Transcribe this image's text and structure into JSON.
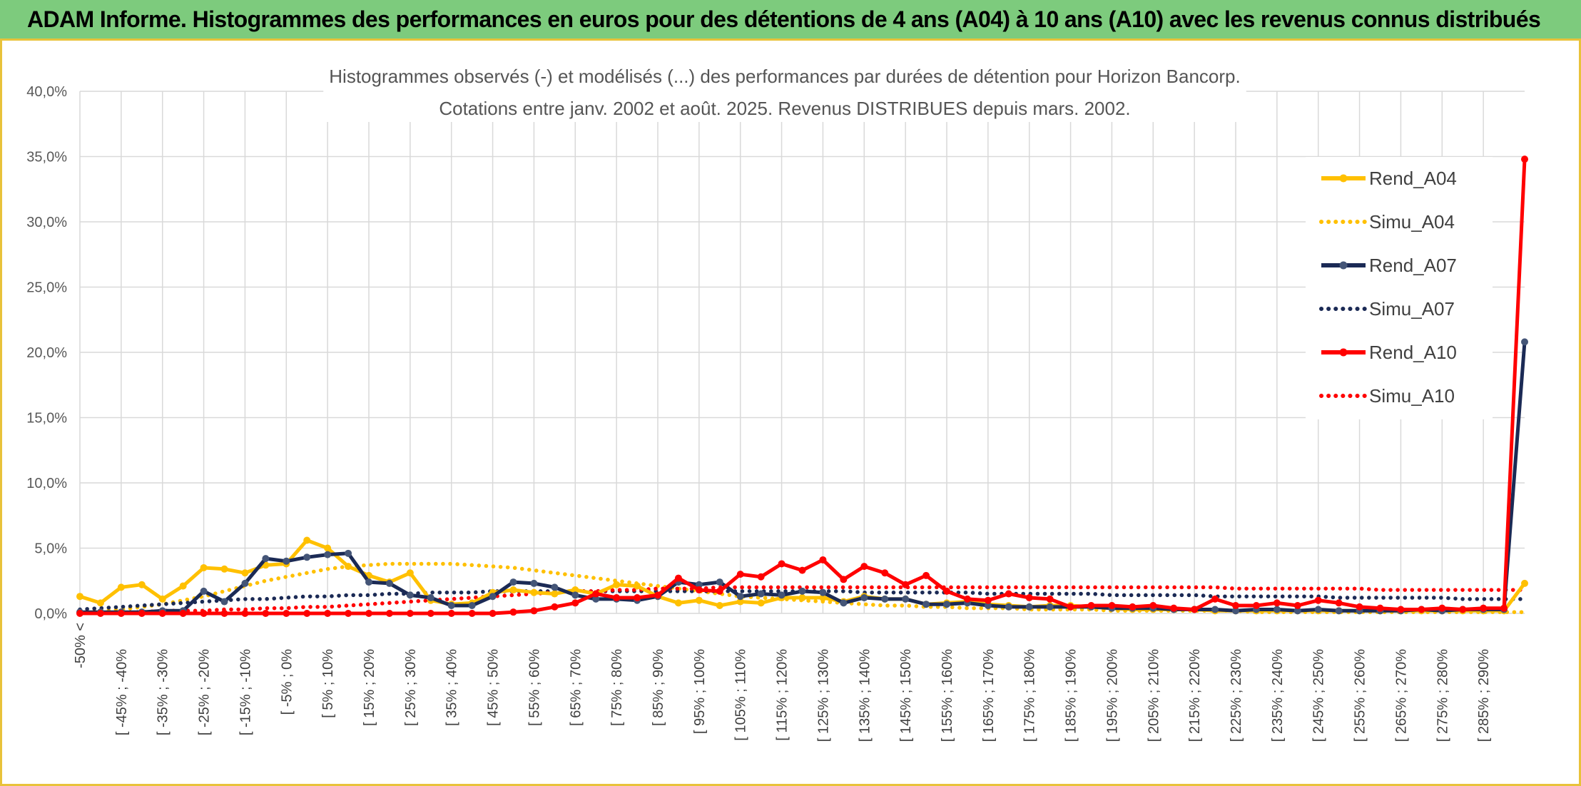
{
  "header": {
    "title": "ADAM Informe. Histogrammes des performances en euros pour des détentions de 4 ans (A04) à 10 ans (A10) avec les revenus connus distribués"
  },
  "colors": {
    "header_bg": "#7dcb7d",
    "frame": "#e8c23a",
    "a04": "#ffc000",
    "a07": "#1b2a55",
    "a10": "#ff0000",
    "grid": "#d9d9d9"
  },
  "chart_data": {
    "type": "line",
    "title": [
      "Histogrammes observés (-) et modélisés (...) des performances par durées de détention pour Horizon Bancorp.",
      "Cotations entre janv. 2002 et août. 2025. Revenus DISTRIBUES depuis mars. 2002."
    ],
    "xlabel": "",
    "ylabel": "",
    "ylim": [
      0,
      40
    ],
    "yticks": [
      "0,0%",
      "5,0%",
      "10,0%",
      "15,0%",
      "20,0%",
      "25,0%",
      "30,0%",
      "35,0%",
      "40,0%"
    ],
    "grid": true,
    "legend_position": "right",
    "categories": [
      "-50% <",
      "[ -50% ; -45%",
      "[ -45% ; -40%",
      "[ -40% ; -35%",
      "[ -35% ; -30%",
      "[ -30% ; -25%",
      "[ -25% ; -20%",
      "[ -20% ; -15%",
      "[ -15% ; -10%",
      "[ -10% ; -5%",
      "[ -5% ; 0%",
      "[ 0% ; 5%",
      "[ 5% ; 10%",
      "[ 10% ; 15%",
      "[ 15% ; 20%",
      "[ 20% ; 25%",
      "[ 25% ; 30%",
      "[ 30% ; 35%",
      "[ 35% ; 40%",
      "[ 40% ; 45%",
      "[ 45% ; 50%",
      "[ 50% ; 55%",
      "[ 55% ; 60%",
      "[ 60% ; 65%",
      "[ 65% ; 70%",
      "[ 70% ; 75%",
      "[ 75% ; 80%",
      "[ 80% ; 85%",
      "[ 85% ; 90%",
      "[ 90% ; 95%",
      "[ 95% ; 100%",
      "[ 100% ; 105%",
      "[ 105% ; 110%",
      "[ 110% ; 115%",
      "[ 115% ; 120%",
      "[ 120% ; 125%",
      "[ 125% ; 130%",
      "[ 130% ; 135%",
      "[ 135% ; 140%",
      "[ 140% ; 145%",
      "[ 145% ; 150%",
      "[ 150% ; 155%",
      "[ 155% ; 160%",
      "[ 160% ; 165%",
      "[ 165% ; 170%",
      "[ 170% ; 175%",
      "[ 175% ; 180%",
      "[ 180% ; 185%",
      "[ 185% ; 190%",
      "[ 190% ; 195%",
      "[ 195% ; 200%",
      "[ 200% ; 205%",
      "[ 205% ; 210%",
      "[ 210% ; 215%",
      "[ 215% ; 220%",
      "[ 220% ; 225%",
      "[ 225% ; 230%",
      "[ 230% ; 235%",
      "[ 235% ; 240%",
      "[ 240% ; 245%",
      "[ 245% ; 250%",
      "[ 250% ; 255%",
      "[ 255% ; 260%",
      "[ 260% ; 265%",
      "[ 265% ; 270%",
      "[ 270% ; 275%",
      "[ 275% ; 280%",
      "[ 280% ; 285%",
      "[ 285% ; 290%",
      "[ 290% ; 295%",
      "> 295%"
    ],
    "visible_tick_labels": [
      "-50% <",
      "[ -45% ; -40%",
      "[ -35% ; -30%",
      "[ -25% ; -20%",
      "[ -15% ; -10%",
      "[ -5% ; 0%",
      "[ 5% ; 10%",
      "[ 15% ; 20%",
      "[ 25% ; 30%",
      "[ 35% ; 40%",
      "[ 45% ; 50%",
      "[ 55% ; 60%",
      "[ 65% ; 70%",
      "[ 75% ; 80%",
      "[ 85% ; 90%",
      "[ 95% ; 100%",
      "[ 105% ; 110%",
      "[ 115% ; 120%",
      "[ 125% ; 130%",
      "[ 135% ; 140%",
      "[ 145% ; 150%",
      "[ 155% ; 160%",
      "[ 165% ; 170%",
      "[ 175% ; 180%",
      "[ 185% ; 190%",
      "[ 195% ; 200%",
      "[ 205% ; 210%",
      "[ 215% ; 220%",
      "[ 225% ; 230%",
      "[ 235% ; 240%",
      "[ 245% ; 250%",
      "[ 255% ; 260%",
      "[ 265% ; 270%",
      "[ 275% ; 280%",
      "[ 285% ; 290%"
    ],
    "series": [
      {
        "name": "Rend_A04",
        "style": "solid",
        "marker": true,
        "color": "#ffc000",
        "values": [
          1.3,
          0.8,
          2.0,
          2.2,
          1.1,
          2.1,
          3.5,
          3.4,
          3.1,
          3.7,
          3.8,
          5.6,
          5.0,
          3.6,
          2.9,
          2.4,
          3.1,
          1.0,
          0.7,
          0.8,
          1.6,
          1.8,
          1.6,
          1.5,
          1.8,
          1.5,
          2.2,
          2.1,
          1.3,
          0.8,
          1.0,
          0.6,
          0.9,
          0.8,
          1.2,
          1.2,
          1.2,
          0.9,
          1.3,
          1.1,
          1.1,
          0.7,
          0.8,
          0.9,
          0.7,
          0.6,
          0.5,
          0.6,
          0.6,
          0.5,
          0.4,
          0.3,
          0.3,
          0.3,
          0.3,
          0.2,
          0.2,
          0.2,
          0.2,
          0.2,
          0.2,
          0.2,
          0.2,
          0.2,
          0.2,
          0.2,
          0.2,
          0.2,
          0.2,
          0.2,
          2.3
        ]
      },
      {
        "name": "Simu_A04",
        "style": "dotted",
        "marker": false,
        "color": "#ffc000",
        "values": [
          0.1,
          0.2,
          0.3,
          0.5,
          0.7,
          1.0,
          1.3,
          1.7,
          2.1,
          2.5,
          2.8,
          3.1,
          3.4,
          3.6,
          3.7,
          3.8,
          3.8,
          3.8,
          3.8,
          3.7,
          3.6,
          3.5,
          3.3,
          3.1,
          2.9,
          2.7,
          2.5,
          2.3,
          2.1,
          1.9,
          1.7,
          1.5,
          1.3,
          1.2,
          1.1,
          1.0,
          0.9,
          0.8,
          0.7,
          0.6,
          0.6,
          0.5,
          0.5,
          0.4,
          0.4,
          0.4,
          0.3,
          0.3,
          0.3,
          0.3,
          0.2,
          0.2,
          0.2,
          0.2,
          0.2,
          0.2,
          0.2,
          0.1,
          0.1,
          0.1,
          0.1,
          0.1,
          0.1,
          0.1,
          0.1,
          0.1,
          0.1,
          0.1,
          0.1,
          0.1,
          0.1
        ]
      },
      {
        "name": "Rend_A07",
        "style": "solid",
        "marker": true,
        "color": "#1b2a55",
        "values": [
          0.1,
          0.1,
          0.1,
          0.1,
          0.2,
          0.2,
          1.7,
          0.9,
          2.3,
          4.2,
          4.0,
          4.3,
          4.5,
          4.6,
          2.4,
          2.3,
          1.4,
          1.2,
          0.6,
          0.6,
          1.3,
          2.4,
          2.3,
          2.0,
          1.4,
          1.1,
          1.1,
          1.0,
          1.3,
          2.4,
          2.2,
          2.4,
          1.3,
          1.5,
          1.4,
          1.7,
          1.6,
          0.8,
          1.2,
          1.1,
          1.1,
          0.7,
          0.7,
          0.8,
          0.6,
          0.5,
          0.5,
          0.5,
          0.5,
          0.5,
          0.4,
          0.4,
          0.4,
          0.3,
          0.3,
          0.3,
          0.2,
          0.3,
          0.3,
          0.2,
          0.3,
          0.2,
          0.2,
          0.2,
          0.2,
          0.3,
          0.2,
          0.3,
          0.3,
          0.3,
          20.8
        ]
      },
      {
        "name": "Simu_A07",
        "style": "dotted",
        "marker": false,
        "color": "#1b2a55",
        "values": [
          0.3,
          0.4,
          0.5,
          0.6,
          0.7,
          0.8,
          0.9,
          1.0,
          1.1,
          1.1,
          1.2,
          1.3,
          1.3,
          1.4,
          1.4,
          1.5,
          1.5,
          1.6,
          1.6,
          1.6,
          1.7,
          1.7,
          1.7,
          1.7,
          1.7,
          1.7,
          1.7,
          1.7,
          1.7,
          1.7,
          1.7,
          1.7,
          1.7,
          1.7,
          1.7,
          1.7,
          1.7,
          1.7,
          1.6,
          1.6,
          1.6,
          1.6,
          1.6,
          1.6,
          1.5,
          1.5,
          1.5,
          1.5,
          1.5,
          1.5,
          1.4,
          1.4,
          1.4,
          1.4,
          1.4,
          1.3,
          1.3,
          1.3,
          1.3,
          1.3,
          1.3,
          1.2,
          1.2,
          1.2,
          1.2,
          1.2,
          1.2,
          1.1,
          1.1,
          1.1,
          1.1
        ]
      },
      {
        "name": "Rend_A10",
        "style": "solid",
        "marker": true,
        "color": "#ff0000",
        "values": [
          0.0,
          0.0,
          0.0,
          0.0,
          0.0,
          0.0,
          0.0,
          0.0,
          0.0,
          0.0,
          0.0,
          0.0,
          0.0,
          0.0,
          0.0,
          0.0,
          0.0,
          0.0,
          0.0,
          0.0,
          0.0,
          0.1,
          0.2,
          0.5,
          0.8,
          1.5,
          1.2,
          1.2,
          1.4,
          2.7,
          1.8,
          1.7,
          3.0,
          2.8,
          3.8,
          3.3,
          4.1,
          2.6,
          3.6,
          3.1,
          2.2,
          2.9,
          1.7,
          1.1,
          1.0,
          1.5,
          1.2,
          1.1,
          0.5,
          0.6,
          0.6,
          0.5,
          0.6,
          0.4,
          0.3,
          1.1,
          0.6,
          0.6,
          0.8,
          0.6,
          1.0,
          0.8,
          0.5,
          0.4,
          0.3,
          0.3,
          0.4,
          0.3,
          0.4,
          0.4,
          34.8
        ]
      },
      {
        "name": "Simu_A10",
        "style": "dotted",
        "marker": false,
        "color": "#ff0000",
        "values": [
          0.1,
          0.1,
          0.1,
          0.1,
          0.2,
          0.2,
          0.2,
          0.3,
          0.3,
          0.4,
          0.4,
          0.5,
          0.5,
          0.6,
          0.7,
          0.8,
          0.9,
          1.0,
          1.1,
          1.2,
          1.3,
          1.4,
          1.5,
          1.6,
          1.7,
          1.7,
          1.8,
          1.8,
          1.9,
          1.9,
          1.9,
          2.0,
          2.0,
          2.0,
          2.0,
          2.0,
          2.0,
          2.0,
          2.0,
          2.0,
          2.0,
          2.0,
          2.0,
          2.0,
          2.0,
          2.0,
          2.0,
          2.0,
          2.0,
          2.0,
          2.0,
          2.0,
          2.0,
          2.0,
          2.0,
          2.0,
          1.9,
          1.9,
          1.9,
          1.9,
          1.9,
          1.9,
          1.9,
          1.8,
          1.8,
          1.8,
          1.8,
          1.8,
          1.8,
          1.8,
          1.8
        ]
      }
    ]
  }
}
